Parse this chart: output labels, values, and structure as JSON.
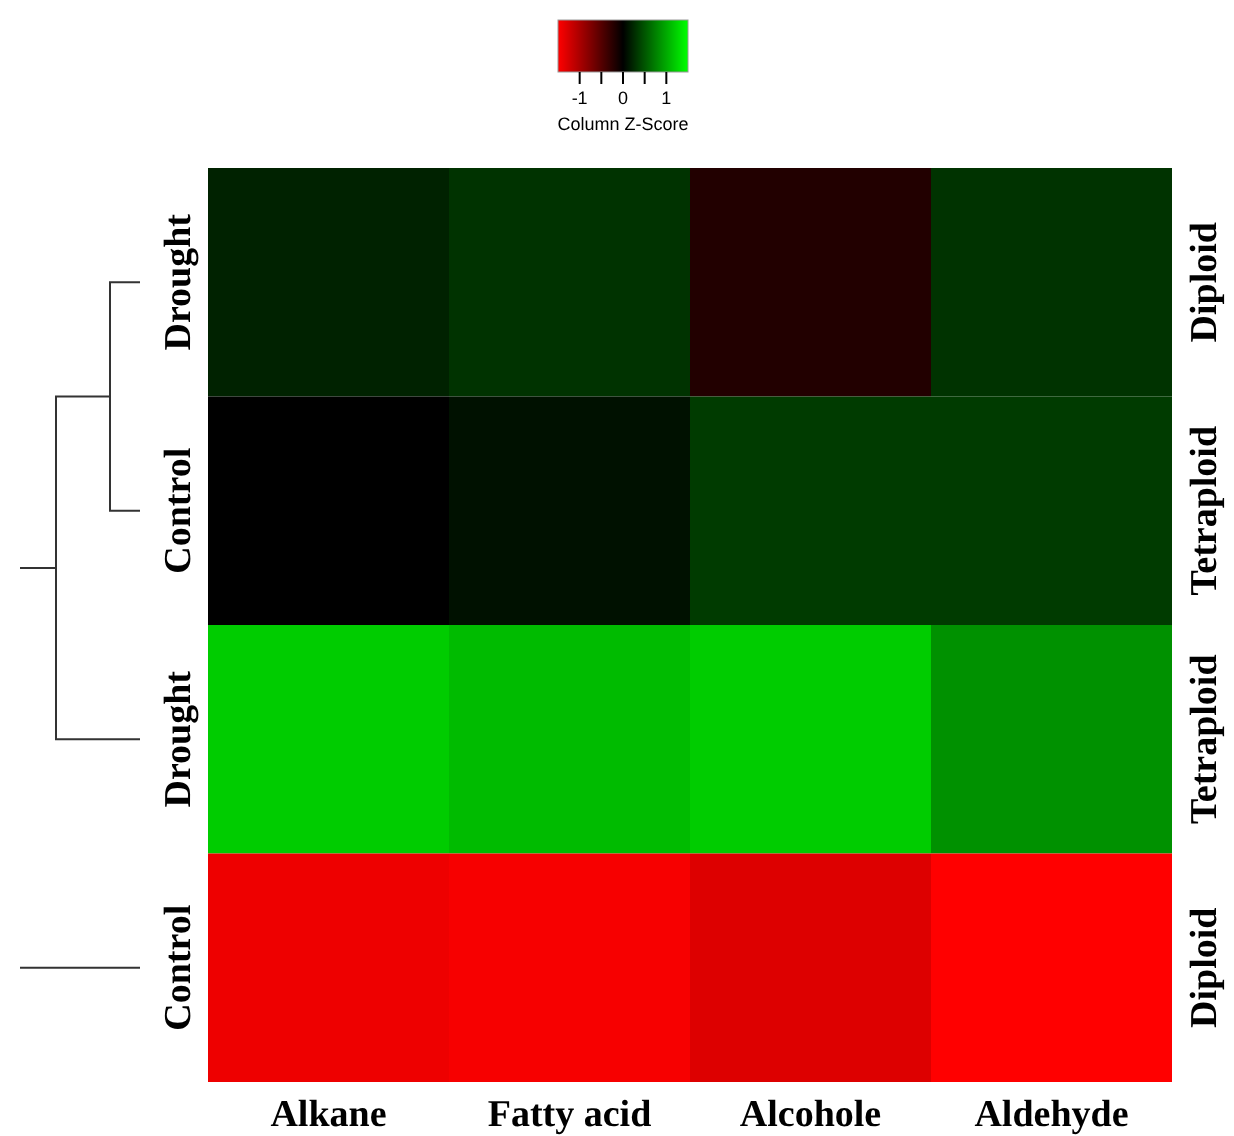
{
  "chart_data": {
    "type": "heatmap",
    "clabel": "Column Z-Score",
    "categories": [
      "Alkane",
      "Fatty acid",
      "Alcohole",
      "Aldehyde"
    ],
    "y_categories": [
      "Drought",
      "Control",
      "Drought",
      "Control"
    ],
    "y2_categories": [
      "Diploid",
      "Tetraploid",
      "Tetraploid",
      "Diploid"
    ],
    "cells": [
      [
        0.2,
        0.3,
        -0.2,
        0.3
      ],
      [
        0.0,
        0.1,
        0.35,
        0.35
      ],
      [
        1.2,
        1.1,
        1.2,
        0.85
      ],
      [
        -1.4,
        -1.45,
        -1.3,
        -1.5
      ]
    ],
    "clim": [
      -1.5,
      1.5
    ],
    "cticks": [
      -1,
      {
        "value": -0.5,
        "label": null
      },
      0,
      {
        "value": 0.5,
        "label": null
      },
      1
    ]
  }
}
